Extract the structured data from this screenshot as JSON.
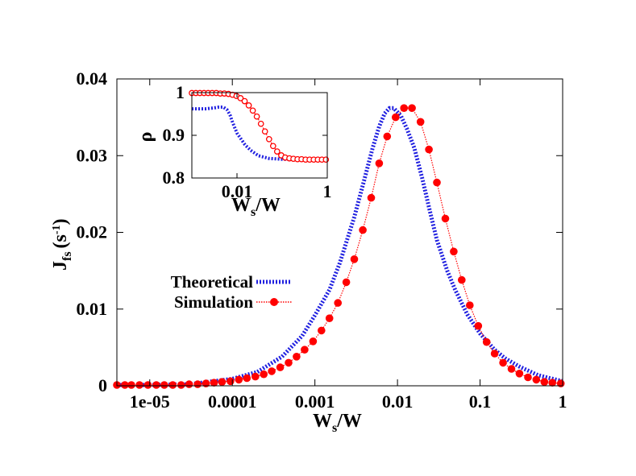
{
  "chart_data": [
    {
      "type": "line",
      "role": "main",
      "xscale": "log",
      "xlim": [
        4e-06,
        1
      ],
      "ylim": [
        0,
        0.04
      ],
      "xticks": [
        {
          "value": 1e-05,
          "label": "1e-05"
        },
        {
          "value": 0.0001,
          "label": "0.0001"
        },
        {
          "value": 0.001,
          "label": "0.001"
        },
        {
          "value": 0.01,
          "label": "0.01"
        },
        {
          "value": 0.1,
          "label": "0.1"
        },
        {
          "value": 1,
          "label": "1"
        }
      ],
      "yticks": [
        {
          "value": 0,
          "label": "0"
        },
        {
          "value": 0.01,
          "label": "0.01"
        },
        {
          "value": 0.02,
          "label": "0.02"
        },
        {
          "value": 0.03,
          "label": "0.03"
        },
        {
          "value": 0.04,
          "label": "0.04"
        }
      ],
      "xlabel": {
        "base": "W",
        "sub": "s",
        "rest": "/W"
      },
      "ylabel": {
        "base": "J",
        "sub": "fs",
        "units": "(s",
        "sup": "-1",
        "close": ")"
      },
      "legend": {
        "placement": "center-left"
      },
      "series": [
        {
          "name": "Theoretical",
          "color": "#2020e0",
          "style": "dotted-thick",
          "points": [
            [
              4e-06,
              0.0001
            ],
            [
              1e-05,
              0.0001
            ],
            [
              3e-05,
              0.0002
            ],
            [
              0.0001,
              0.0009
            ],
            [
              0.0002,
              0.0018
            ],
            [
              0.0004,
              0.0038
            ],
            [
              0.0007,
              0.0065
            ],
            [
              0.001,
              0.0092
            ],
            [
              0.0015,
              0.0125
            ],
            [
              0.002,
              0.016
            ],
            [
              0.003,
              0.022
            ],
            [
              0.004,
              0.027
            ],
            [
              0.005,
              0.031
            ],
            [
              0.006,
              0.0338
            ],
            [
              0.007,
              0.0355
            ],
            [
              0.008,
              0.0362
            ],
            [
              0.009,
              0.0362
            ],
            [
              0.011,
              0.0352
            ],
            [
              0.013,
              0.0335
            ],
            [
              0.016,
              0.031
            ],
            [
              0.02,
              0.027
            ],
            [
              0.025,
              0.0225
            ],
            [
              0.03,
              0.019
            ],
            [
              0.04,
              0.015
            ],
            [
              0.05,
              0.0125
            ],
            [
              0.07,
              0.0093
            ],
            [
              0.1,
              0.0068
            ],
            [
              0.15,
              0.0047
            ],
            [
              0.2,
              0.0036
            ],
            [
              0.3,
              0.0025
            ],
            [
              0.5,
              0.0014
            ],
            [
              0.7,
              0.001
            ],
            [
              1,
              0.0006
            ]
          ]
        },
        {
          "name": "Simulation",
          "color": "#ff0000",
          "style": "line-circles",
          "points": [
            [
              4e-06,
              0.0001
            ],
            [
              5e-06,
              0.0001
            ],
            [
              6e-06,
              0.0001
            ],
            [
              7.5e-06,
              0.0001
            ],
            [
              9.5e-06,
              0.0001
            ],
            [
              1.2e-05,
              0.0001
            ],
            [
              1.5e-05,
              0.0001
            ],
            [
              1.9e-05,
              0.0001
            ],
            [
              2.4e-05,
              0.0001
            ],
            [
              3e-05,
              0.0002
            ],
            [
              3.8e-05,
              0.0002
            ],
            [
              4.8e-05,
              0.0003
            ],
            [
              6e-05,
              0.0004
            ],
            [
              7.5e-05,
              0.0005
            ],
            [
              9.5e-05,
              0.0006
            ],
            [
              0.00012,
              0.0008
            ],
            [
              0.00015,
              0.001
            ],
            [
              0.00019,
              0.0012
            ],
            [
              0.00024,
              0.0015
            ],
            [
              0.0003,
              0.0019
            ],
            [
              0.00038,
              0.0024
            ],
            [
              0.00048,
              0.003
            ],
            [
              0.0006,
              0.0038
            ],
            [
              0.00075,
              0.0047
            ],
            [
              0.00095,
              0.0058
            ],
            [
              0.0012,
              0.0072
            ],
            [
              0.0015,
              0.0088
            ],
            [
              0.0019,
              0.0108
            ],
            [
              0.0024,
              0.0135
            ],
            [
              0.003,
              0.0165
            ],
            [
              0.0038,
              0.0203
            ],
            [
              0.0048,
              0.0245
            ],
            [
              0.006,
              0.029
            ],
            [
              0.0075,
              0.0325
            ],
            [
              0.0095,
              0.035
            ],
            [
              0.012,
              0.0362
            ],
            [
              0.015,
              0.0362
            ],
            [
              0.019,
              0.0344
            ],
            [
              0.024,
              0.0308
            ],
            [
              0.03,
              0.0265
            ],
            [
              0.038,
              0.0218
            ],
            [
              0.048,
              0.0175
            ],
            [
              0.06,
              0.0138
            ],
            [
              0.075,
              0.0105
            ],
            [
              0.095,
              0.0078
            ],
            [
              0.12,
              0.0057
            ],
            [
              0.15,
              0.0042
            ],
            [
              0.19,
              0.003
            ],
            [
              0.24,
              0.0022
            ],
            [
              0.3,
              0.0016
            ],
            [
              0.38,
              0.0011
            ],
            [
              0.48,
              0.0008
            ],
            [
              0.6,
              0.0005
            ],
            [
              0.75,
              0.0004
            ],
            [
              0.95,
              0.0003
            ]
          ]
        }
      ]
    },
    {
      "type": "line",
      "role": "inset",
      "xscale": "log",
      "xlim": [
        0.001,
        1
      ],
      "ylim": [
        0.8,
        1.0
      ],
      "xticks": [
        {
          "value": 0.01,
          "label": "0.01"
        },
        {
          "value": 1,
          "label": "1"
        }
      ],
      "yticks": [
        {
          "value": 0.8,
          "label": "0.8"
        },
        {
          "value": 0.9,
          "label": "0.9"
        },
        {
          "value": 1.0,
          "label": "1"
        }
      ],
      "xlabel": {
        "base": "W",
        "sub": "s",
        "rest": "/W"
      },
      "ylabel": "ρ",
      "series": [
        {
          "name": "Theoretical",
          "color": "#2020e0",
          "style": "dotted-thick",
          "points": [
            [
              0.001,
              0.962
            ],
            [
              0.002,
              0.962
            ],
            [
              0.003,
              0.964
            ],
            [
              0.004,
              0.966
            ],
            [
              0.005,
              0.966
            ],
            [
              0.006,
              0.96
            ],
            [
              0.007,
              0.948
            ],
            [
              0.008,
              0.93
            ],
            [
              0.01,
              0.905
            ],
            [
              0.015,
              0.878
            ],
            [
              0.02,
              0.865
            ],
            [
              0.03,
              0.852
            ],
            [
              0.05,
              0.846
            ],
            [
              0.1,
              0.844
            ],
            [
              0.3,
              0.843
            ],
            [
              1,
              0.843
            ]
          ]
        },
        {
          "name": "Simulation",
          "color": "#ff0000",
          "style": "line-circles",
          "points": [
            [
              0.001,
              0.999
            ],
            [
              0.00123,
              0.999
            ],
            [
              0.00151,
              0.999
            ],
            [
              0.00186,
              0.999
            ],
            [
              0.00229,
              0.999
            ],
            [
              0.00282,
              0.999
            ],
            [
              0.00347,
              0.999
            ],
            [
              0.00427,
              0.998
            ],
            [
              0.00525,
              0.998
            ],
            [
              0.00646,
              0.997
            ],
            [
              0.00794,
              0.995
            ],
            [
              0.00977,
              0.992
            ],
            [
              0.012,
              0.987
            ],
            [
              0.0148,
              0.98
            ],
            [
              0.0182,
              0.97
            ],
            [
              0.0224,
              0.958
            ],
            [
              0.0275,
              0.944
            ],
            [
              0.0339,
              0.927
            ],
            [
              0.0417,
              0.909
            ],
            [
              0.0513,
              0.891
            ],
            [
              0.0631,
              0.875
            ],
            [
              0.0776,
              0.862
            ],
            [
              0.0955,
              0.853
            ],
            [
              0.117,
              0.848
            ],
            [
              0.145,
              0.846
            ],
            [
              0.178,
              0.845
            ],
            [
              0.219,
              0.844
            ],
            [
              0.269,
              0.844
            ],
            [
              0.331,
              0.843
            ],
            [
              0.407,
              0.843
            ],
            [
              0.501,
              0.843
            ],
            [
              0.617,
              0.843
            ],
            [
              0.759,
              0.843
            ],
            [
              0.933,
              0.843
            ]
          ]
        }
      ]
    }
  ]
}
